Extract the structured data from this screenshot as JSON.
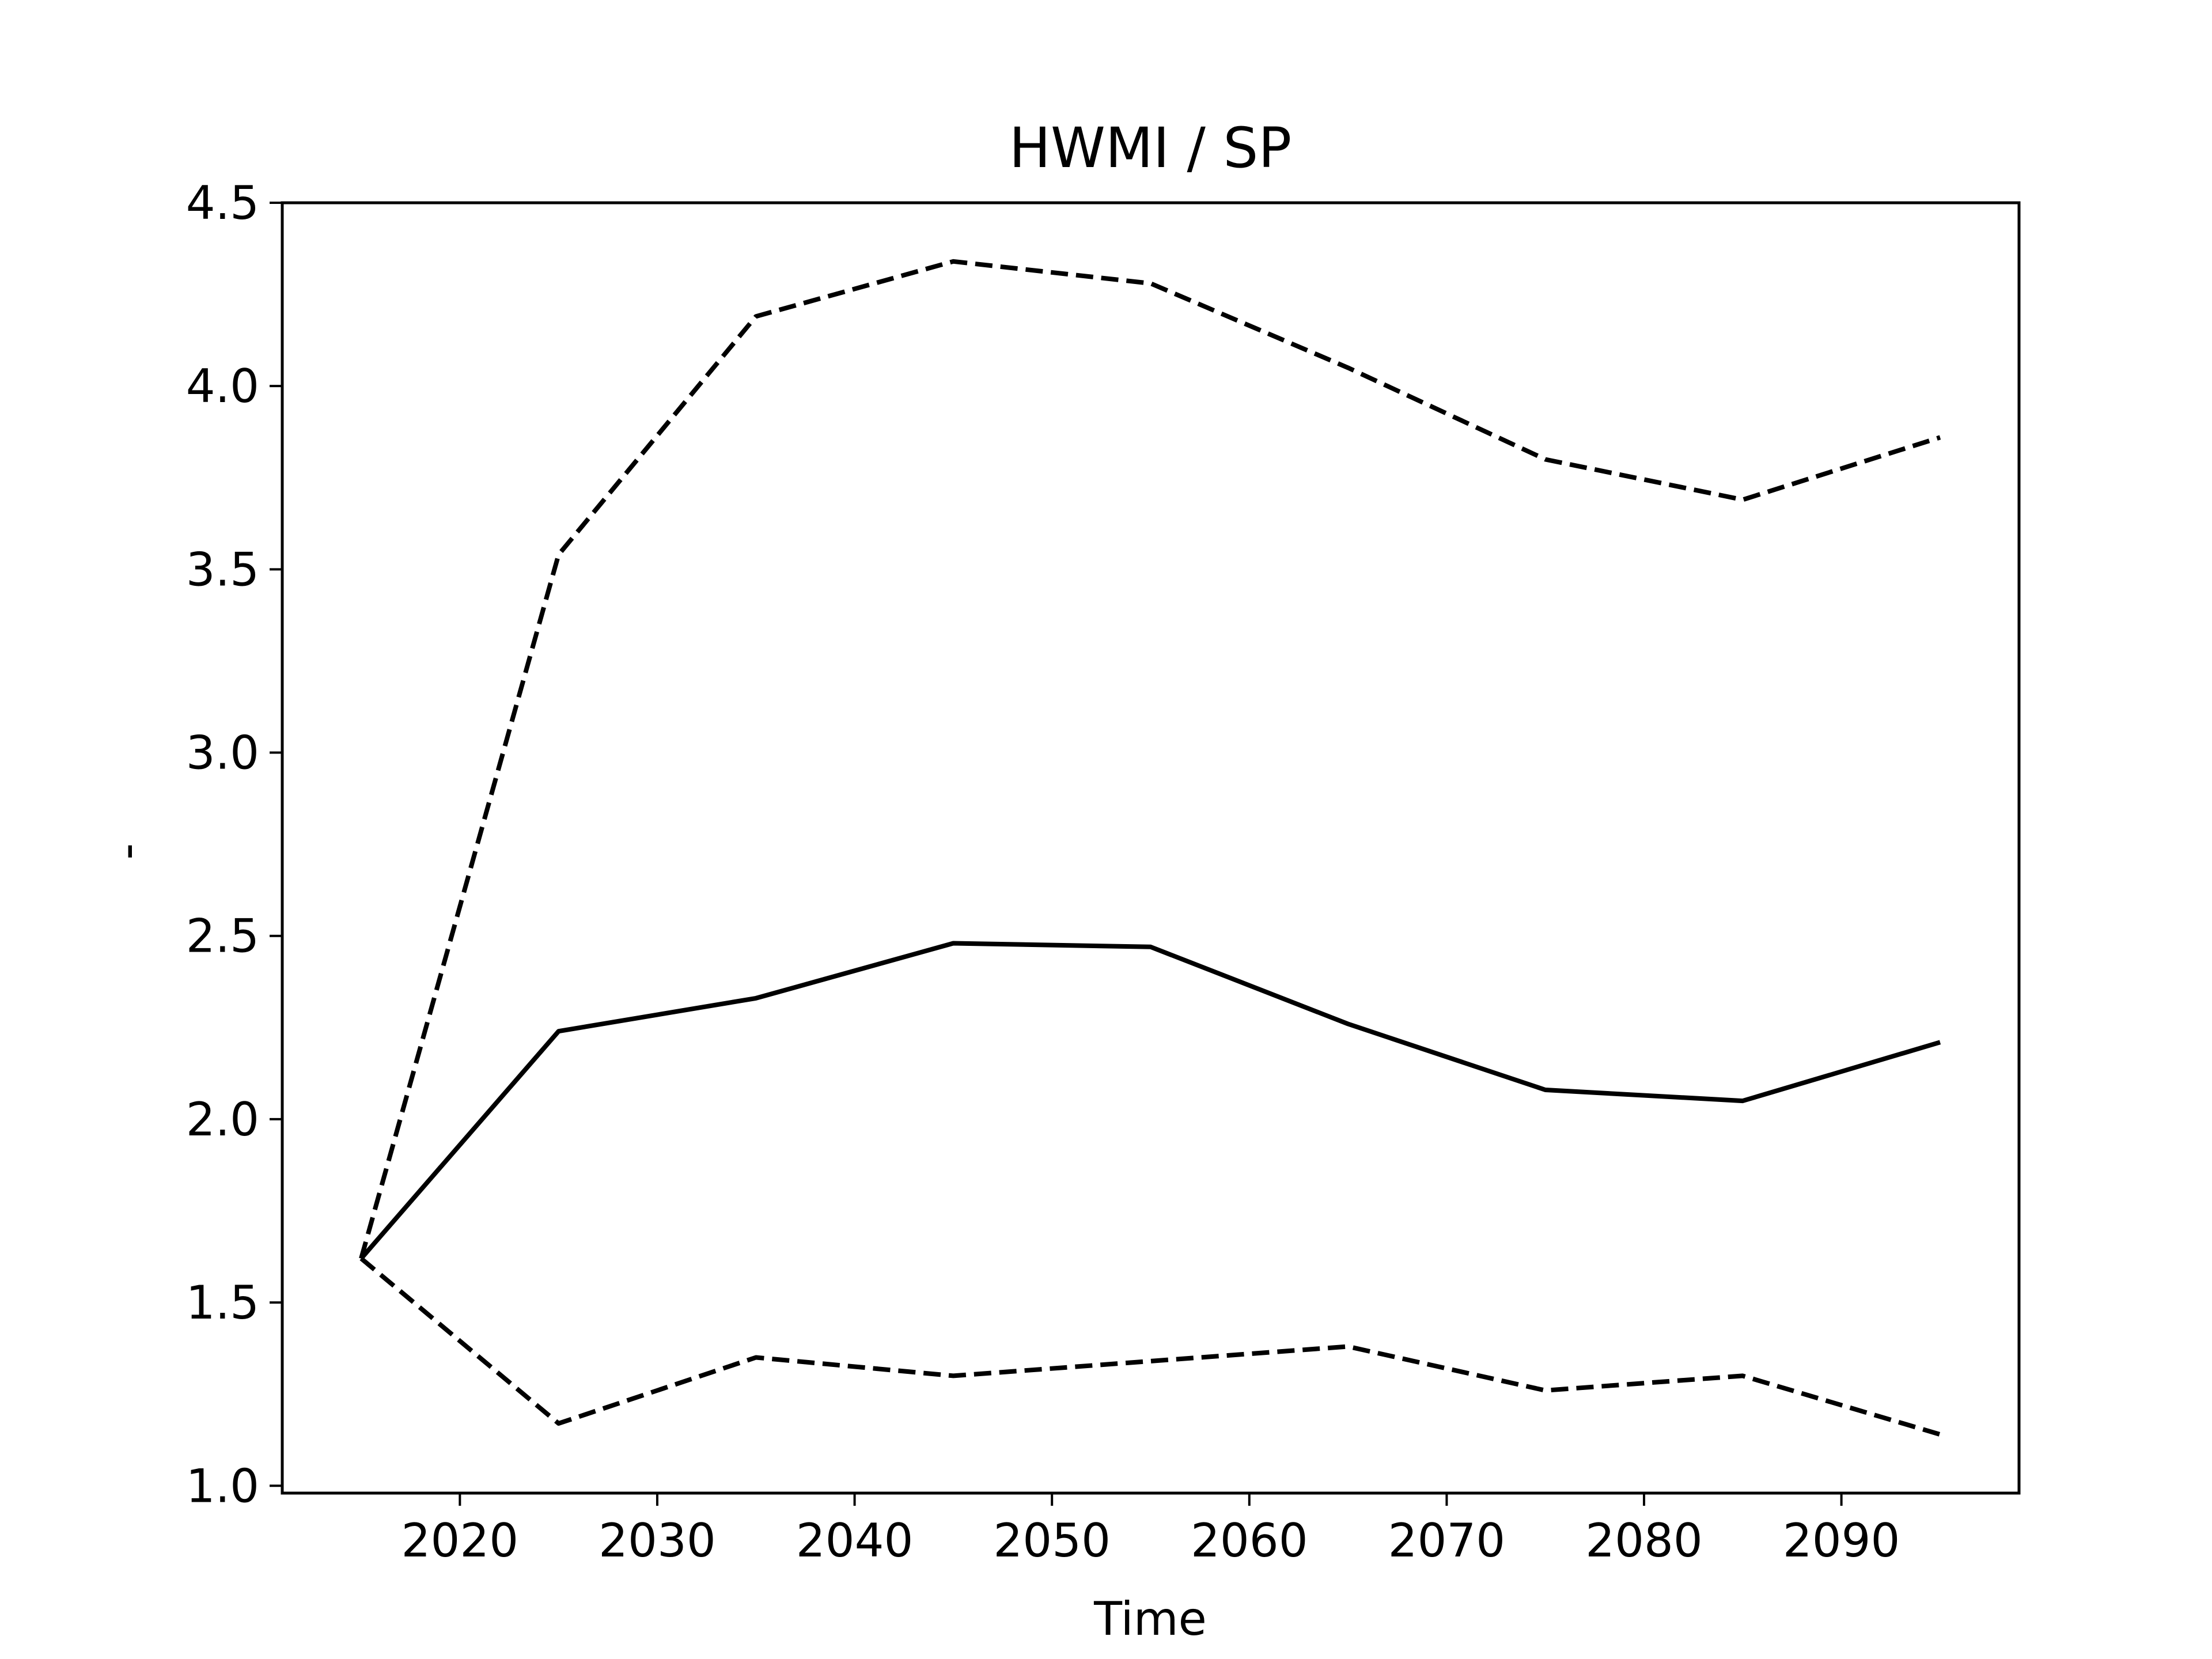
{
  "chart_data": {
    "type": "line",
    "title": "HWMI / SP",
    "xlabel": "Time",
    "ylabel": "-",
    "xlim": [
      2011,
      2099
    ],
    "ylim": [
      0.98,
      4.5
    ],
    "xticks": [
      2020,
      2030,
      2040,
      2050,
      2060,
      2070,
      2080,
      2090
    ],
    "yticks": [
      1.0,
      1.5,
      2.0,
      2.5,
      3.0,
      3.5,
      4.0,
      4.5
    ],
    "ytick_labels": [
      "1.0",
      "1.5",
      "2.0",
      "2.5",
      "3.0",
      "3.5",
      "4.0",
      "4.5"
    ],
    "grid": false,
    "x": [
      2015,
      2025,
      2035,
      2045,
      2055,
      2065,
      2075,
      2085,
      2095
    ],
    "series": [
      {
        "style": "solid",
        "color": "#000000",
        "values": [
          1.62,
          2.24,
          2.33,
          2.48,
          2.47,
          2.26,
          2.08,
          2.05,
          2.21
        ]
      },
      {
        "style": "dashed",
        "color": "#000000",
        "values": [
          1.62,
          3.54,
          4.19,
          4.34,
          4.28,
          4.05,
          3.8,
          3.69,
          3.86
        ]
      },
      {
        "style": "dashed",
        "color": "#000000",
        "values": [
          1.62,
          1.17,
          1.35,
          1.3,
          1.34,
          1.38,
          1.26,
          1.3,
          1.14
        ]
      }
    ]
  }
}
